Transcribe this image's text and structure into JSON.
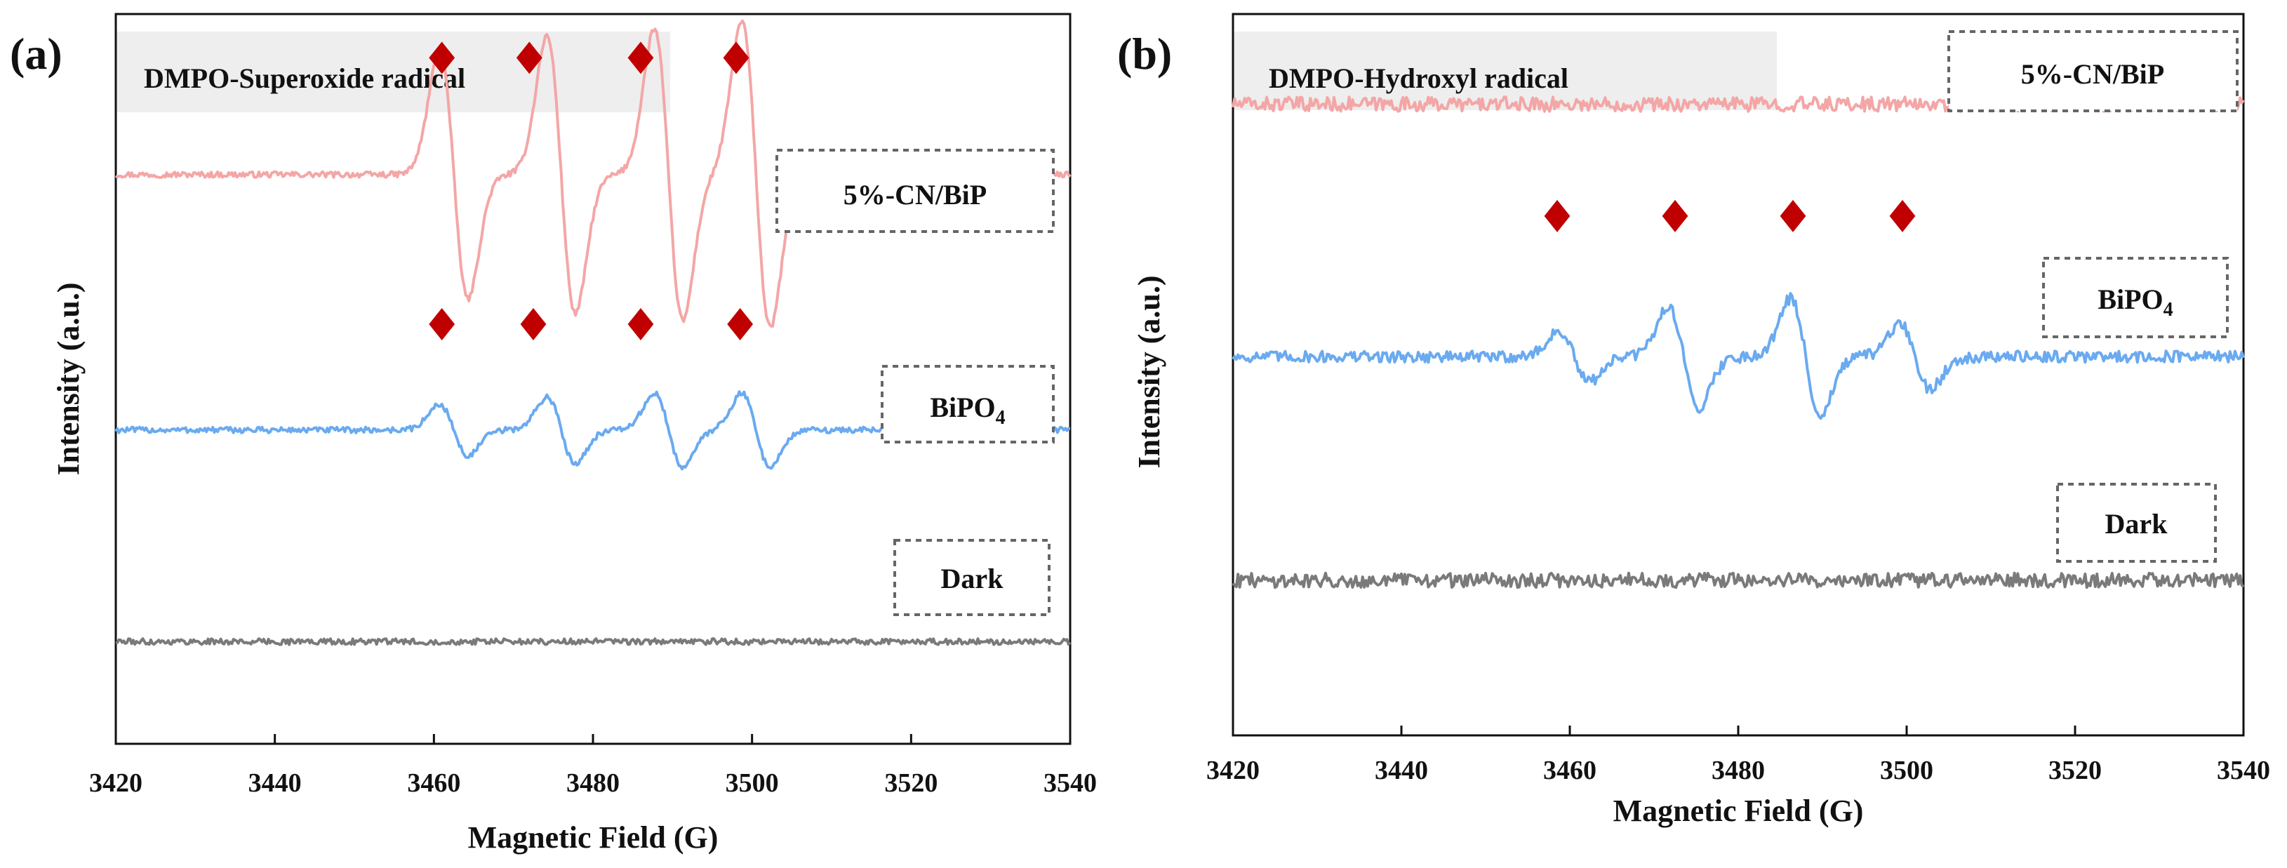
{
  "colors": {
    "pink": "#f4a6a6",
    "blue": "#6aaaf0",
    "gray": "#7a7a7a",
    "marker": "#c00000",
    "title_box": "#eeeeee",
    "dash_box": "#666666"
  },
  "chart_data": [
    {
      "type": "line",
      "panel_label": "(a)",
      "title": "DMPO-Superoxide radical",
      "xlabel": "Magnetic Field (G)",
      "ylabel": "Intensity (a.u.)",
      "xlim": [
        3420,
        3540
      ],
      "x_ticks": [
        "3420",
        "3440",
        "3460",
        "3480",
        "3500",
        "3520",
        "3540"
      ],
      "y_ticks": [],
      "peak_marker": "diamond",
      "series": [
        {
          "name": "5%-CN/BiP",
          "color": "#f4a6a6",
          "offset": 0.78,
          "noise": 0.004,
          "line_pairs": [
            [
              3462.5,
              0.17
            ],
            [
              3476,
              0.19
            ],
            [
              3489.5,
              0.2
            ],
            [
              3500.5,
              0.21
            ]
          ],
          "marker_x": [
            3461,
            3472,
            3486,
            3498
          ],
          "marker_level": 0.94
        },
        {
          "name": "BiPO4",
          "color": "#6aaaf0",
          "offset": 0.43,
          "noise": 0.004,
          "line_pairs": [
            [
              3462.5,
              0.035
            ],
            [
              3476,
              0.045
            ],
            [
              3489.5,
              0.05
            ],
            [
              3500.5,
              0.05
            ]
          ],
          "marker_x": [
            3461,
            3472.5,
            3486,
            3498.5
          ],
          "marker_level": 0.575
        },
        {
          "name": "Dark",
          "color": "#7a7a7a",
          "offset": 0.14,
          "noise": 0.004,
          "line_pairs": [],
          "marker_x": [],
          "marker_level": 0
        }
      ]
    },
    {
      "type": "line",
      "panel_label": "(b)",
      "title": "DMPO-Hydroxyl radical",
      "xlabel": "Magnetic Field (G)",
      "ylabel": "Intensity (a.u.)",
      "xlim": [
        3420,
        3540
      ],
      "x_ticks": [
        "3420",
        "3440",
        "3460",
        "3480",
        "3500",
        "3520",
        "3540"
      ],
      "y_ticks": [],
      "peak_marker": "diamond",
      "series": [
        {
          "name": "5%-CN/BiP",
          "color": "#f4a6a6",
          "offset": 0.875,
          "noise": 0.01,
          "line_pairs": [],
          "marker_x": [],
          "marker_level": 0
        },
        {
          "name": "BiPO4",
          "color": "#6aaaf0",
          "offset": 0.525,
          "noise": 0.008,
          "line_pairs": [
            [
              3460.5,
              0.035
            ],
            [
              3473.5,
              0.07
            ],
            [
              3488,
              0.08
            ],
            [
              3501,
              0.045
            ]
          ],
          "marker_x": [
            3458.5,
            3472.5,
            3486.5,
            3499.5
          ],
          "marker_level": 0.72
        },
        {
          "name": "Dark",
          "color": "#7a7a7a",
          "offset": 0.215,
          "noise": 0.01,
          "line_pairs": [],
          "marker_x": [],
          "marker_level": 0
        }
      ]
    }
  ]
}
